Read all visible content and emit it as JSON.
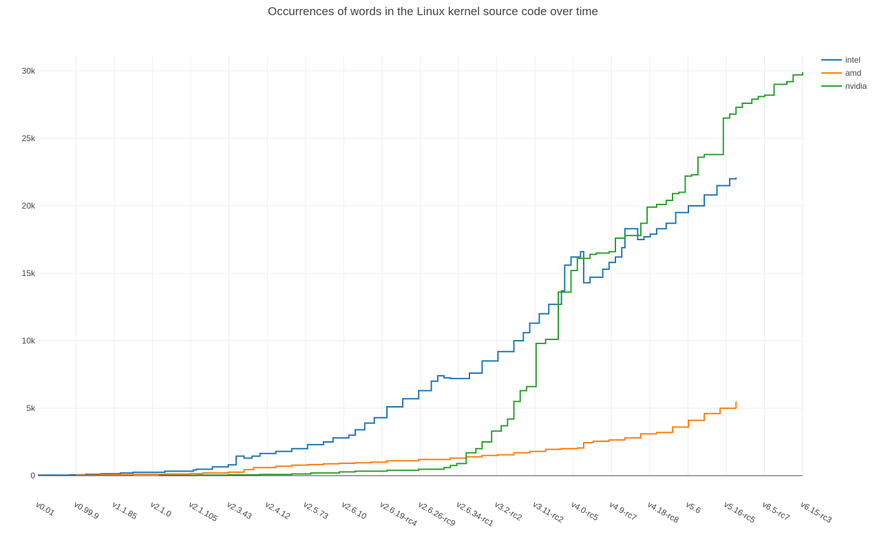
{
  "chart_data": {
    "type": "line",
    "title": "Occurrences of words in the Linux kernel source code over time",
    "xlabel": "",
    "ylabel": "",
    "ylim": [
      0,
      31000
    ],
    "yticks": [
      0,
      5000,
      10000,
      15000,
      20000,
      25000,
      30000
    ],
    "ytick_labels": [
      "0",
      "5k",
      "10k",
      "15k",
      "20k",
      "25k",
      "30k"
    ],
    "categories": [
      "v0.01",
      "v0.99.9",
      "v1.1.85",
      "v2.1.0",
      "v2.1.105",
      "v2.3.43",
      "v2.4.12",
      "v2.5.73",
      "v2.6.10",
      "v2.6.19-rc4",
      "v2.6.26-rc9",
      "v2.6.34-rc1",
      "v3.2-rc2",
      "v3.11-rc2",
      "v4.0-rc5",
      "v4.9-rc7",
      "v4.18-rc8",
      "v5.6",
      "v5.16-rc5",
      "v6.5-rc7",
      "v6.15-rc3"
    ],
    "grid": true,
    "legend_position": "top-right",
    "series": [
      {
        "name": "intel",
        "color": "#1f77b4",
        "points": [
          [
            0,
            40
          ],
          [
            1,
            60
          ],
          [
            1.5,
            100
          ],
          [
            2,
            150
          ],
          [
            2.6,
            200
          ],
          [
            3,
            250
          ],
          [
            4,
            330
          ],
          [
            4.9,
            430
          ],
          [
            5,
            480
          ],
          [
            5.5,
            650
          ],
          [
            6,
            800
          ],
          [
            6.25,
            1450
          ],
          [
            6.5,
            1300
          ],
          [
            6.75,
            1450
          ],
          [
            7,
            1650
          ],
          [
            7.5,
            1800
          ],
          [
            8,
            2000
          ],
          [
            8.5,
            2300
          ],
          [
            9,
            2500
          ],
          [
            9.3,
            2800
          ],
          [
            9.8,
            3000
          ],
          [
            10,
            3400
          ],
          [
            10.3,
            3900
          ],
          [
            10.6,
            4300
          ],
          [
            11,
            5100
          ],
          [
            11.5,
            5700
          ],
          [
            12,
            6300
          ],
          [
            12.4,
            7000
          ],
          [
            12.6,
            7400
          ],
          [
            12.8,
            7250
          ],
          [
            13,
            7200
          ],
          [
            13.4,
            7200
          ],
          [
            13.6,
            7600
          ],
          [
            14,
            8500
          ],
          [
            14.5,
            9200
          ],
          [
            15,
            10000
          ],
          [
            15.3,
            10600
          ],
          [
            15.5,
            11300
          ],
          [
            15.8,
            12000
          ],
          [
            16.1,
            12700
          ],
          [
            16.5,
            13700
          ],
          [
            16.6,
            15600
          ],
          [
            16.8,
            16200
          ],
          [
            17.1,
            16600
          ],
          [
            17.2,
            14300
          ],
          [
            17.4,
            14700
          ],
          [
            17.8,
            15300
          ],
          [
            18,
            15800
          ],
          [
            18.2,
            16200
          ],
          [
            18.4,
            16900
          ],
          [
            18.5,
            18300
          ],
          [
            18.8,
            18300
          ],
          [
            18.9,
            17500
          ],
          [
            19.1,
            17700
          ],
          [
            19.3,
            17900
          ],
          [
            19.5,
            18300
          ],
          [
            19.8,
            18700
          ],
          [
            20.1,
            19500
          ],
          [
            20.5,
            20000
          ],
          [
            21,
            20800
          ],
          [
            21.4,
            21500
          ],
          [
            21.8,
            22000
          ],
          [
            22,
            22100
          ]
        ]
      },
      {
        "name": "amd",
        "color": "#ff7f0e",
        "points": [
          [
            1.2,
            40
          ],
          [
            2,
            70
          ],
          [
            3,
            100
          ],
          [
            4,
            120
          ],
          [
            4.8,
            150
          ],
          [
            5.2,
            200
          ],
          [
            6,
            260
          ],
          [
            6.5,
            450
          ],
          [
            6.8,
            600
          ],
          [
            7.5,
            700
          ],
          [
            8,
            780
          ],
          [
            8.5,
            820
          ],
          [
            9,
            880
          ],
          [
            9.5,
            920
          ],
          [
            10,
            960
          ],
          [
            10.5,
            1000
          ],
          [
            11,
            1100
          ],
          [
            12,
            1200
          ],
          [
            13,
            1300
          ],
          [
            13.5,
            1400
          ],
          [
            14,
            1500
          ],
          [
            14.5,
            1550
          ],
          [
            15,
            1700
          ],
          [
            15.5,
            1800
          ],
          [
            16,
            1950
          ],
          [
            16.5,
            2000
          ],
          [
            17,
            2050
          ],
          [
            17.2,
            2450
          ],
          [
            17.5,
            2550
          ],
          [
            18,
            2650
          ],
          [
            18.5,
            2800
          ],
          [
            19,
            3100
          ],
          [
            19.5,
            3200
          ],
          [
            20,
            3600
          ],
          [
            20.5,
            4100
          ],
          [
            21,
            4600
          ],
          [
            21.5,
            5000
          ],
          [
            22,
            5500
          ]
        ]
      },
      {
        "name": "nvidia",
        "color": "#2ca02c",
        "points": [
          [
            3.8,
            20
          ],
          [
            5,
            40
          ],
          [
            6,
            60
          ],
          [
            7,
            90
          ],
          [
            8,
            130
          ],
          [
            8.6,
            200
          ],
          [
            9.5,
            280
          ],
          [
            10,
            330
          ],
          [
            11,
            400
          ],
          [
            12,
            480
          ],
          [
            12.8,
            600
          ],
          [
            13,
            750
          ],
          [
            13.2,
            900
          ],
          [
            13.5,
            1700
          ],
          [
            13.8,
            2000
          ],
          [
            14,
            2500
          ],
          [
            14.3,
            3300
          ],
          [
            14.6,
            3700
          ],
          [
            14.8,
            4200
          ],
          [
            15,
            5500
          ],
          [
            15.2,
            6300
          ],
          [
            15.4,
            6600
          ],
          [
            15.6,
            6600
          ],
          [
            15.7,
            9800
          ],
          [
            16,
            10100
          ],
          [
            16.3,
            10100
          ],
          [
            16.4,
            13600
          ],
          [
            16.6,
            13600
          ],
          [
            16.8,
            15200
          ],
          [
            17,
            16100
          ],
          [
            17.4,
            16400
          ],
          [
            17.6,
            16500
          ],
          [
            18,
            16600
          ],
          [
            18.2,
            17600
          ],
          [
            18.5,
            17800
          ],
          [
            18.9,
            17800
          ],
          [
            19,
            18700
          ],
          [
            19.2,
            19900
          ],
          [
            19.5,
            20100
          ],
          [
            19.8,
            20400
          ],
          [
            20,
            20900
          ],
          [
            20.2,
            21000
          ],
          [
            20.4,
            22200
          ],
          [
            20.6,
            22300
          ],
          [
            20.8,
            23600
          ],
          [
            21,
            23800
          ],
          [
            21.2,
            23800
          ],
          [
            21.4,
            23800
          ],
          [
            21.6,
            26500
          ],
          [
            21.8,
            26800
          ],
          [
            22,
            27300
          ],
          [
            22.2,
            27600
          ],
          [
            22.5,
            27900
          ],
          [
            22.7,
            28100
          ],
          [
            22.9,
            28200
          ],
          [
            23.2,
            29000
          ],
          [
            23.6,
            29200
          ],
          [
            23.8,
            29700
          ],
          [
            24.1,
            29900
          ]
        ]
      }
    ]
  }
}
